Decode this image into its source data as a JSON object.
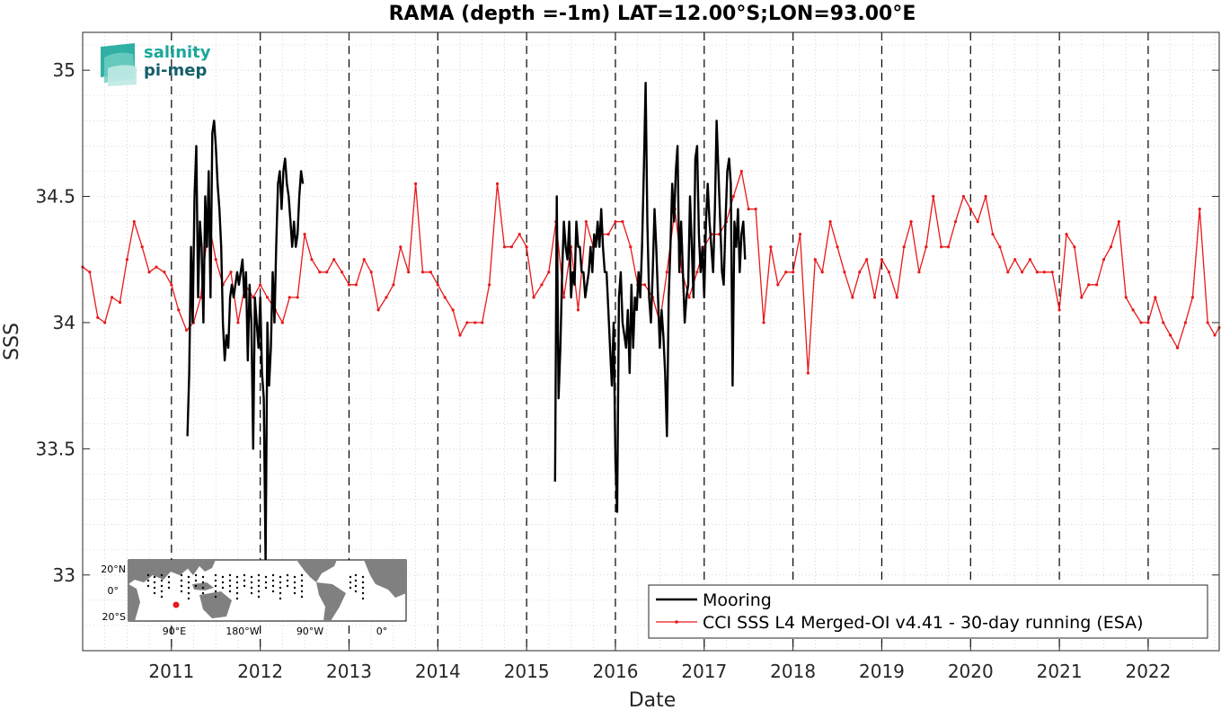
{
  "logo": {
    "line1": "salinity",
    "line2": "pi-mep",
    "color1": "#1aa79a",
    "color2": "#145f6a"
  },
  "chart_data": {
    "type": "line",
    "title": "RAMA (depth =-1m) LAT=12.00°S;LON=93.00°E",
    "xlabel": "Date",
    "ylabel": "SSS",
    "xlim": [
      2010.0,
      2022.8
    ],
    "ylim": [
      32.7,
      35.15
    ],
    "x_ticks": [
      2011,
      2012,
      2013,
      2014,
      2015,
      2016,
      2017,
      2018,
      2019,
      2020,
      2021,
      2022
    ],
    "x_tick_labels": [
      "2011",
      "2012",
      "2013",
      "2014",
      "2015",
      "2016",
      "2017",
      "2018",
      "2019",
      "2020",
      "2021",
      "2022"
    ],
    "y_ticks": [
      33,
      33.5,
      34,
      34.5,
      35
    ],
    "y_tick_labels": [
      "33",
      "33.5",
      "34",
      "34.5",
      "35"
    ],
    "grid": true,
    "year_boundary_lines": true,
    "legend_position": "bottom-right",
    "series": [
      {
        "name": "Mooring",
        "color": "#000000",
        "style": "line",
        "segments": [
          {
            "x": [
              2011.18,
              2011.2,
              2011.22,
              2011.24,
              2011.26,
              2011.28,
              2011.3,
              2011.32,
              2011.34,
              2011.36,
              2011.38,
              2011.4,
              2011.42,
              2011.44,
              2011.46,
              2011.48,
              2011.5,
              2011.52,
              2011.54,
              2011.56,
              2011.58,
              2011.6,
              2011.62,
              2011.64,
              2011.66,
              2011.68,
              2011.7,
              2011.72,
              2011.74,
              2011.76,
              2011.78,
              2011.8,
              2011.82,
              2011.84,
              2011.86,
              2011.88,
              2011.9,
              2011.92,
              2011.94,
              2011.96,
              2011.98,
              2012.0,
              2012.02,
              2012.04,
              2012.06,
              2012.08,
              2012.1,
              2012.12,
              2012.14,
              2012.16,
              2012.18,
              2012.2,
              2012.22,
              2012.24,
              2012.26,
              2012.28,
              2012.3,
              2012.32,
              2012.34,
              2012.36,
              2012.38,
              2012.4,
              2012.42,
              2012.44,
              2012.46,
              2012.48
            ],
            "y": [
              33.55,
              33.8,
              34.3,
              34.0,
              34.5,
              34.7,
              34.1,
              34.4,
              34.3,
              34.0,
              34.5,
              34.3,
              34.6,
              34.1,
              34.75,
              34.8,
              34.7,
              34.55,
              34.45,
              34.3,
              34.0,
              33.85,
              33.95,
              33.9,
              34.1,
              34.15,
              34.1,
              34.15,
              34.2,
              34.15,
              34.2,
              34.25,
              34.1,
              34.2,
              33.85,
              34.15,
              34.0,
              33.5,
              34.1,
              34.0,
              33.9,
              34.1,
              33.8,
              33.7,
              33.05,
              34.0,
              33.75,
              33.9,
              34.2,
              34.0,
              34.3,
              34.55,
              34.6,
              34.45,
              34.6,
              34.65,
              34.55,
              34.5,
              34.4,
              34.3,
              34.4,
              34.3,
              34.35,
              34.5,
              34.6,
              34.55
            ]
          },
          {
            "x": [
              2015.32,
              2015.34,
              2015.36,
              2015.38,
              2015.4,
              2015.42,
              2015.44,
              2015.46,
              2015.48,
              2015.5,
              2015.52,
              2015.54,
              2015.56,
              2015.58,
              2015.6,
              2015.62,
              2015.64,
              2015.66,
              2015.68,
              2015.7,
              2015.72,
              2015.74,
              2015.76,
              2015.78,
              2015.8,
              2015.82,
              2015.84,
              2015.86,
              2015.88,
              2015.9,
              2015.92,
              2015.94,
              2015.96,
              2015.98,
              2016.0,
              2016.02,
              2016.04,
              2016.06,
              2016.08,
              2016.1,
              2016.12,
              2016.14,
              2016.16,
              2016.18,
              2016.2,
              2016.22,
              2016.24,
              2016.26,
              2016.28,
              2016.3,
              2016.32,
              2016.34,
              2016.36,
              2016.38,
              2016.4,
              2016.42,
              2016.44,
              2016.46,
              2016.48,
              2016.5,
              2016.52,
              2016.54,
              2016.56,
              2016.58,
              2016.6,
              2016.62,
              2016.64,
              2016.66,
              2016.68,
              2016.7,
              2016.72,
              2016.74,
              2016.76,
              2016.78,
              2016.8,
              2016.82,
              2016.84,
              2016.86,
              2016.88,
              2016.9,
              2016.92,
              2016.94,
              2016.96,
              2016.98,
              2017.0,
              2017.02,
              2017.04,
              2017.06,
              2017.08,
              2017.1,
              2017.12,
              2017.14,
              2017.16,
              2017.18,
              2017.2,
              2017.22,
              2017.24,
              2017.26,
              2017.28,
              2017.3,
              2017.32,
              2017.34,
              2017.36,
              2017.38,
              2017.4,
              2017.42,
              2017.44,
              2017.46
            ],
            "y": [
              33.37,
              34.5,
              33.7,
              33.9,
              34.2,
              34.4,
              34.3,
              34.25,
              34.4,
              34.1,
              34.2,
              34.15,
              34.4,
              34.3,
              34.3,
              34.2,
              34.2,
              34.1,
              34.15,
              34.2,
              34.3,
              34.2,
              34.35,
              34.3,
              34.4,
              34.3,
              34.45,
              34.3,
              34.2,
              34.2,
              34.05,
              33.9,
              33.75,
              34.0,
              33.45,
              33.25,
              34.1,
              34.2,
              34.0,
              33.95,
              33.9,
              34.05,
              33.8,
              34.15,
              33.9,
              34.1,
              34.05,
              34.2,
              34.1,
              34.3,
              34.6,
              34.95,
              34.4,
              34.1,
              34.0,
              34.2,
              34.45,
              34.3,
              34.1,
              33.9,
              34.05,
              33.95,
              33.8,
              33.55,
              34.1,
              34.3,
              34.55,
              34.4,
              34.6,
              34.7,
              34.2,
              34.4,
              34.2,
              34.0,
              34.1,
              34.15,
              34.5,
              34.3,
              34.1,
              34.65,
              34.7,
              34.35,
              34.2,
              34.3,
              34.1,
              34.4,
              34.55,
              34.4,
              34.3,
              34.2,
              34.45,
              34.8,
              34.6,
              34.4,
              34.2,
              34.15,
              34.4,
              34.6,
              34.65,
              34.55,
              33.75,
              34.4,
              34.3,
              34.45,
              34.2,
              34.35,
              34.4,
              34.25
            ]
          }
        ]
      },
      {
        "name": "CCI SSS L4 Merged-OI v4.41 - 30-day running (ESA)",
        "color": "#e8191b",
        "style": "line-with-dots",
        "x": [
          2010.0,
          2010.08,
          2010.17,
          2010.25,
          2010.33,
          2010.42,
          2010.5,
          2010.58,
          2010.67,
          2010.75,
          2010.83,
          2010.92,
          2011.0,
          2011.08,
          2011.17,
          2011.25,
          2011.33,
          2011.42,
          2011.5,
          2011.58,
          2011.67,
          2011.75,
          2011.83,
          2011.92,
          2012.0,
          2012.08,
          2012.17,
          2012.25,
          2012.33,
          2012.42,
          2012.5,
          2012.58,
          2012.67,
          2012.75,
          2012.83,
          2012.92,
          2013.0,
          2013.08,
          2013.17,
          2013.25,
          2013.33,
          2013.42,
          2013.5,
          2013.58,
          2013.67,
          2013.75,
          2013.83,
          2013.92,
          2014.0,
          2014.08,
          2014.17,
          2014.25,
          2014.33,
          2014.42,
          2014.5,
          2014.58,
          2014.67,
          2014.75,
          2014.83,
          2014.92,
          2015.0,
          2015.08,
          2015.17,
          2015.25,
          2015.33,
          2015.42,
          2015.5,
          2015.58,
          2015.67,
          2015.75,
          2015.83,
          2015.92,
          2016.0,
          2016.08,
          2016.17,
          2016.25,
          2016.33,
          2016.42,
          2016.5,
          2016.58,
          2016.67,
          2016.75,
          2016.83,
          2016.92,
          2017.0,
          2017.08,
          2017.17,
          2017.25,
          2017.33,
          2017.42,
          2017.5,
          2017.58,
          2017.67,
          2017.75,
          2017.83,
          2017.92,
          2018.0,
          2018.08,
          2018.17,
          2018.25,
          2018.33,
          2018.42,
          2018.5,
          2018.58,
          2018.67,
          2018.75,
          2018.83,
          2018.92,
          2019.0,
          2019.08,
          2019.17,
          2019.25,
          2019.33,
          2019.42,
          2019.5,
          2019.58,
          2019.67,
          2019.75,
          2019.83,
          2019.92,
          2020.0,
          2020.08,
          2020.17,
          2020.25,
          2020.33,
          2020.42,
          2020.5,
          2020.58,
          2020.67,
          2020.75,
          2020.83,
          2020.92,
          2021.0,
          2021.08,
          2021.17,
          2021.25,
          2021.33,
          2021.42,
          2021.5,
          2021.58,
          2021.67,
          2021.75,
          2021.83,
          2021.92,
          2022.0,
          2022.08,
          2022.17,
          2022.25,
          2022.33,
          2022.42,
          2022.5,
          2022.58,
          2022.67,
          2022.75,
          2022.8
        ],
        "y": [
          34.22,
          34.2,
          34.02,
          34.0,
          34.1,
          34.08,
          34.25,
          34.4,
          34.3,
          34.2,
          34.22,
          34.2,
          34.15,
          34.05,
          33.97,
          34.0,
          34.1,
          34.4,
          34.25,
          34.15,
          34.2,
          34.0,
          34.15,
          34.1,
          34.15,
          34.1,
          34.05,
          34.0,
          34.1,
          34.1,
          34.35,
          34.25,
          34.2,
          34.2,
          34.25,
          34.2,
          34.15,
          34.15,
          34.25,
          34.2,
          34.05,
          34.1,
          34.15,
          34.3,
          34.2,
          34.55,
          34.2,
          34.2,
          34.15,
          34.1,
          34.05,
          33.95,
          34.0,
          34.0,
          34.0,
          34.15,
          34.55,
          34.3,
          34.3,
          34.35,
          34.3,
          34.1,
          34.15,
          34.2,
          34.4,
          34.1,
          34.3,
          34.05,
          34.4,
          34.3,
          34.35,
          34.35,
          34.4,
          34.4,
          34.3,
          34.15,
          34.15,
          34.1,
          34.0,
          34.2,
          34.45,
          34.2,
          34.1,
          34.2,
          34.3,
          34.35,
          34.35,
          34.4,
          34.5,
          34.6,
          34.45,
          34.45,
          34.0,
          34.3,
          34.15,
          34.2,
          34.2,
          34.35,
          33.8,
          34.25,
          34.2,
          34.4,
          34.3,
          34.2,
          34.1,
          34.2,
          34.25,
          34.1,
          34.25,
          34.2,
          34.1,
          34.3,
          34.4,
          34.2,
          34.3,
          34.5,
          34.3,
          34.3,
          34.4,
          34.5,
          34.45,
          34.4,
          34.5,
          34.35,
          34.3,
          34.2,
          34.25,
          34.2,
          34.25,
          34.2,
          34.2,
          34.2,
          34.05,
          34.35,
          34.3,
          34.1,
          34.15,
          34.15,
          34.25,
          34.3,
          34.4,
          34.1,
          34.05,
          34.0,
          34.0,
          34.1,
          34.0,
          33.95,
          33.9,
          34.0,
          34.1,
          34.45,
          34.0,
          33.95,
          33.98
        ]
      }
    ]
  },
  "inset_map": {
    "y_tick_labels": [
      "20°N",
      "0°",
      "20°S"
    ],
    "x_tick_labels": [
      "90°E",
      "180°W",
      "90°W",
      "0°"
    ],
    "marker_color": "#e8191b"
  }
}
